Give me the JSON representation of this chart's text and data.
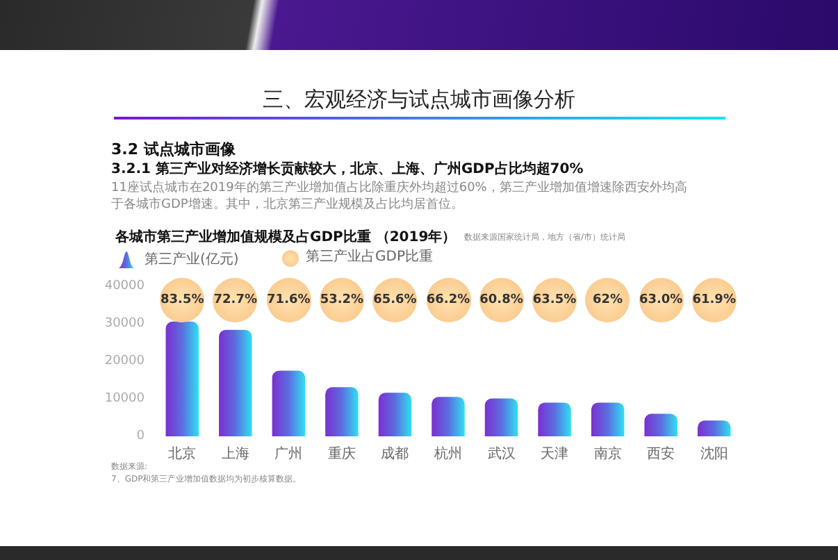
{
  "chart_data": {
    "type": "bar",
    "title": "各城市第三产业增加值规模及占GDP比重 （2019年）",
    "annotations": [
      "三、宏观经济与试点城市画像分析",
      "3.2 试点城市画像",
      "3.2.1 第三产业对经济增长贡献较大，北京、上海、广州GDP占比均超70%",
      "11座试点城市在2019年的第三产业增加值占比除重庆外均超过60%，第三产业增加值增速除西安外均高",
      "于各城市GDP增速。其中，北京第三产业规模及占比均居首位。",
      "数据来源国家统计局，地方（省/市）统计局",
      "数据来源:",
      "7、GDP和第三产业增加值数据均为初步核算数据。",
      "第三产业占GDP比重",
      {
        "text": "83.5%",
        "x": "北京"
      },
      {
        "text": "72.7%",
        "x": "上海"
      },
      {
        "text": "71.6%",
        "x": "广州"
      },
      {
        "text": "53.2%",
        "x": "重庆"
      },
      {
        "text": "65.6%",
        "x": "成都"
      },
      {
        "text": "66.2%",
        "x": "杭州"
      },
      {
        "text": "60.8%",
        "x": "武汉"
      },
      {
        "text": "63.5%",
        "x": "天津"
      },
      {
        "text": "62%",
        "x": "南京"
      },
      {
        "text": "63.0%",
        "x": "西安"
      },
      {
        "text": "61.9%",
        "x": "沈阳"
      }
    ],
    "categories": [
      "北京",
      "上海",
      "广州",
      "重庆",
      "成都",
      "杭州",
      "武汉",
      "天津",
      "南京",
      "西安",
      "沈阳"
    ],
    "series": [
      {
        "name": "第三产业(亿元)",
        "color": "#5b6ee0",
        "values": [
          30600,
          28400,
          17500,
          13100,
          11600,
          10500,
          10100,
          9000,
          9000,
          6000,
          4200
        ]
      }
    ],
    "ylim": [
      0,
      40000
    ],
    "yticks": [
      0,
      10000,
      20000,
      30000,
      40000
    ],
    "grid": false,
    "legend": "top left"
  }
}
